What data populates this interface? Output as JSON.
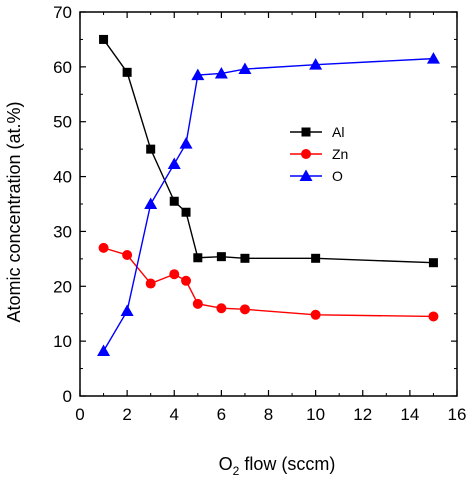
{
  "chart_data": {
    "type": "line",
    "xlabel_main": "O",
    "xlabel_sub": "2",
    "xlabel_rest": " flow (sccm)",
    "ylabel": "Atomic concentration (at.%)",
    "xlim": [
      0,
      16
    ],
    "ylim": [
      0,
      70
    ],
    "x_ticks": [
      "0",
      "2",
      "4",
      "6",
      "8",
      "10",
      "12",
      "14",
      "16"
    ],
    "y_ticks": [
      "0",
      "10",
      "20",
      "30",
      "40",
      "50",
      "60",
      "70"
    ],
    "legend_position": "upper-right (inside)",
    "series": [
      {
        "name": "Al",
        "color": "#000000",
        "marker": "square",
        "x": [
          1,
          2,
          3,
          4,
          4.5,
          5,
          6,
          7,
          10,
          15
        ],
        "y": [
          65,
          59,
          45,
          35.5,
          33.5,
          25.2,
          25.4,
          25.1,
          25.1,
          24.3
        ]
      },
      {
        "name": "Zn",
        "color": "#ff0000",
        "marker": "circle",
        "x": [
          1,
          2,
          3,
          4,
          4.5,
          5,
          6,
          7,
          10,
          15
        ],
        "y": [
          27,
          25.7,
          20.5,
          22.2,
          21,
          16.8,
          16,
          15.8,
          14.8,
          14.5
        ]
      },
      {
        "name": "O",
        "color": "#0000ff",
        "marker": "triangle",
        "x": [
          1,
          2,
          3,
          4,
          4.5,
          5,
          6,
          7,
          10,
          15
        ],
        "y": [
          8.2,
          15.5,
          35,
          42.3,
          46,
          58.5,
          58.8,
          59.6,
          60.4,
          61.5
        ]
      }
    ]
  }
}
